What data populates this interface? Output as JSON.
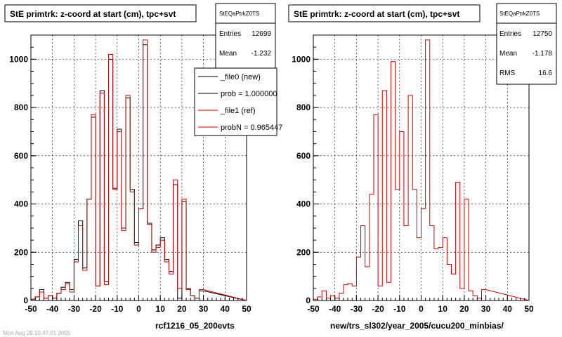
{
  "chart_data": [
    {
      "type": "histogram",
      "title": "StE primtrk: z-coord at start (cm), tpc+svt",
      "xlabel": "rcf1216_05_200evts",
      "xlim": [
        -50,
        50
      ],
      "ylim": [
        0,
        1100
      ],
      "bin_width": 2,
      "x_ticks": [
        -50,
        -40,
        -30,
        -20,
        -10,
        0,
        10,
        20,
        30,
        40,
        50
      ],
      "y_ticks": [
        0,
        200,
        400,
        600,
        800,
        1000
      ],
      "grid": true,
      "series": [
        {
          "name": "_file0 (new)",
          "color": "#000000",
          "values": [
            5,
            15,
            45,
            10,
            20,
            10,
            30,
            55,
            75,
            45,
            170,
            330,
            135,
            420,
            760,
            60,
            870,
            80,
            1000,
            465,
            710,
            300,
            840,
            460,
            240,
            380,
            1060,
            320,
            210,
            230,
            260,
            170,
            120,
            480,
            10,
            410,
            50,
            20,
            10,
            40
          ]
        },
        {
          "name": "_file1 (ref)",
          "color": "#cc0000",
          "values": [
            5,
            15,
            35,
            10,
            20,
            10,
            30,
            45,
            70,
            35,
            160,
            310,
            125,
            420,
            770,
            60,
            860,
            65,
            1020,
            460,
            700,
            290,
            850,
            450,
            230,
            380,
            1080,
            315,
            200,
            220,
            250,
            160,
            110,
            500,
            50,
            420,
            45,
            20,
            10,
            45
          ]
        }
      ],
      "legend": {
        "position": "top-right",
        "entries": [
          "_file0 (new)",
          "prob = 1.000000",
          "_file1 (ref)",
          "probN = 0.965447"
        ]
      },
      "stats": {
        "title": "StEQaPtrkZ0TS",
        "rows": [
          [
            "Entries",
            "12699"
          ],
          [
            "Mean",
            "-1.232"
          ]
        ]
      }
    },
    {
      "type": "histogram",
      "title": "StE primtrk: z-coord at start (cm), tpc+svt",
      "xlabel": "new/trs_sl302/year_2005/cucu200_minbias/",
      "xlim": [
        -50,
        50
      ],
      "ylim": [
        0,
        1100
      ],
      "bin_width": 2,
      "x_ticks": [
        -50,
        -40,
        -30,
        -20,
        -10,
        0,
        10,
        20,
        30,
        40,
        50
      ],
      "y_ticks": [
        0,
        200,
        400,
        600,
        800,
        1000
      ],
      "grid": true,
      "series": [
        {
          "name": "_file1 (ref)",
          "color": "#cc0000",
          "values": [
            5,
            15,
            40,
            10,
            20,
            10,
            30,
            65,
            70,
            60,
            180,
            310,
            140,
            440,
            770,
            60,
            870,
            75,
            990,
            460,
            700,
            310,
            850,
            460,
            260,
            380,
            1080,
            310,
            215,
            220,
            260,
            150,
            110,
            490,
            50,
            420,
            40,
            20,
            10,
            45
          ]
        }
      ],
      "stats": {
        "title": "StEQaPtrkZ0TS",
        "rows": [
          [
            "Entries",
            "12750"
          ],
          [
            "Mean",
            "-1.178"
          ],
          [
            "RMS",
            "16.6"
          ]
        ]
      }
    }
  ],
  "stamp": "Mon Aug 29 10:47:01 2005"
}
